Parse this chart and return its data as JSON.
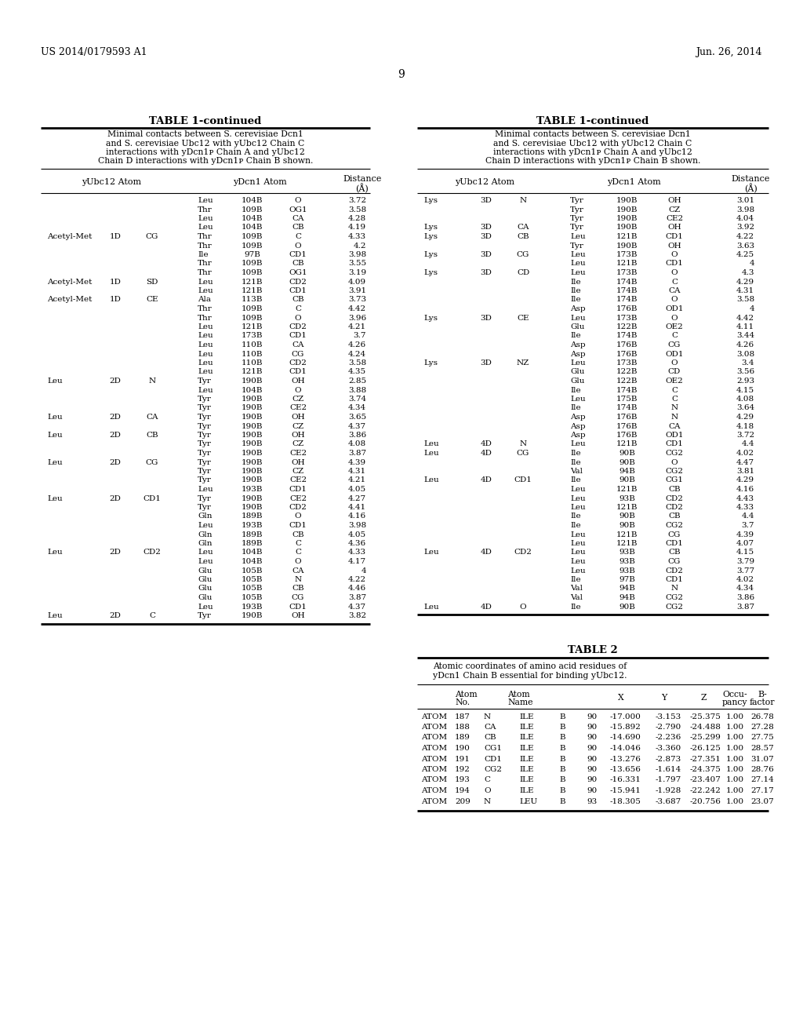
{
  "header_left": "US 2014/0179593 A1",
  "header_right": "Jun. 26, 2014",
  "page_number": "9",
  "table1_title": "TABLE 1-continued",
  "table1_caption_left": [
    "Minimal contacts between S. cerevisiae Dcn1",
    "and S. cerevisiae Ubc12 with yUbc12 Chain C",
    "interactions with yDcn1ᴘ Chain A and yUbc12",
    "Chain D interactions with yDcn1ᴘ Chain B shown."
  ],
  "table2_title": "TABLE 2",
  "table2_caption": [
    "Atomic coordinates of amino acid residues of",
    "yDcn1 Chain B essential for binding yUbc12."
  ],
  "left_table_data": [
    [
      "",
      "",
      "",
      "Leu",
      "104B",
      "O",
      "3.72"
    ],
    [
      "",
      "",
      "",
      "Thr",
      "109B",
      "OG1",
      "3.58"
    ],
    [
      "",
      "",
      "",
      "Leu",
      "104B",
      "CA",
      "4.28"
    ],
    [
      "",
      "",
      "",
      "Leu",
      "104B",
      "CB",
      "4.19"
    ],
    [
      "Acetyl-Met",
      "1D",
      "CG",
      "Thr",
      "109B",
      "C",
      "4.33"
    ],
    [
      "",
      "",
      "",
      "Thr",
      "109B",
      "O",
      "4.2"
    ],
    [
      "",
      "",
      "",
      "Ile",
      "97B",
      "CD1",
      "3.98"
    ],
    [
      "",
      "",
      "",
      "Thr",
      "109B",
      "CB",
      "3.55"
    ],
    [
      "",
      "",
      "",
      "Thr",
      "109B",
      "OG1",
      "3.19"
    ],
    [
      "Acetyl-Met",
      "1D",
      "SD",
      "Leu",
      "121B",
      "CD2",
      "4.09"
    ],
    [
      "",
      "",
      "",
      "Leu",
      "121B",
      "CD1",
      "3.91"
    ],
    [
      "Acetyl-Met",
      "1D",
      "CE",
      "Ala",
      "113B",
      "CB",
      "3.73"
    ],
    [
      "",
      "",
      "",
      "Thr",
      "109B",
      "C",
      "4.42"
    ],
    [
      "",
      "",
      "",
      "Thr",
      "109B",
      "O",
      "3.96"
    ],
    [
      "",
      "",
      "",
      "Leu",
      "121B",
      "CD2",
      "4.21"
    ],
    [
      "",
      "",
      "",
      "Leu",
      "173B",
      "CD1",
      "3.7"
    ],
    [
      "",
      "",
      "",
      "Leu",
      "110B",
      "CA",
      "4.26"
    ],
    [
      "",
      "",
      "",
      "Leu",
      "110B",
      "CG",
      "4.24"
    ],
    [
      "",
      "",
      "",
      "Leu",
      "110B",
      "CD2",
      "3.58"
    ],
    [
      "",
      "",
      "",
      "Leu",
      "121B",
      "CD1",
      "4.35"
    ],
    [
      "Leu",
      "2D",
      "N",
      "Tyr",
      "190B",
      "OH",
      "2.85"
    ],
    [
      "",
      "",
      "",
      "Leu",
      "104B",
      "O",
      "3.88"
    ],
    [
      "",
      "",
      "",
      "Tyr",
      "190B",
      "CZ",
      "3.74"
    ],
    [
      "",
      "",
      "",
      "Tyr",
      "190B",
      "CE2",
      "4.34"
    ],
    [
      "Leu",
      "2D",
      "CA",
      "Tyr",
      "190B",
      "OH",
      "3.65"
    ],
    [
      "",
      "",
      "",
      "Tyr",
      "190B",
      "CZ",
      "4.37"
    ],
    [
      "Leu",
      "2D",
      "CB",
      "Tyr",
      "190B",
      "OH",
      "3.86"
    ],
    [
      "",
      "",
      "",
      "Tyr",
      "190B",
      "CZ",
      "4.08"
    ],
    [
      "",
      "",
      "",
      "Tyr",
      "190B",
      "CE2",
      "3.87"
    ],
    [
      "Leu",
      "2D",
      "CG",
      "Tyr",
      "190B",
      "OH",
      "4.39"
    ],
    [
      "",
      "",
      "",
      "Tyr",
      "190B",
      "CZ",
      "4.31"
    ],
    [
      "",
      "",
      "",
      "Tyr",
      "190B",
      "CE2",
      "4.21"
    ],
    [
      "",
      "",
      "",
      "Leu",
      "193B",
      "CD1",
      "4.05"
    ],
    [
      "Leu",
      "2D",
      "CD1",
      "Tyr",
      "190B",
      "CE2",
      "4.27"
    ],
    [
      "",
      "",
      "",
      "Tyr",
      "190B",
      "CD2",
      "4.41"
    ],
    [
      "",
      "",
      "",
      "Gln",
      "189B",
      "O",
      "4.16"
    ],
    [
      "",
      "",
      "",
      "Leu",
      "193B",
      "CD1",
      "3.98"
    ],
    [
      "",
      "",
      "",
      "Gln",
      "189B",
      "CB",
      "4.05"
    ],
    [
      "",
      "",
      "",
      "Gln",
      "189B",
      "C",
      "4.36"
    ],
    [
      "Leu",
      "2D",
      "CD2",
      "Leu",
      "104B",
      "C",
      "4.33"
    ],
    [
      "",
      "",
      "",
      "Leu",
      "104B",
      "O",
      "4.17"
    ],
    [
      "",
      "",
      "",
      "Glu",
      "105B",
      "CA",
      "4"
    ],
    [
      "",
      "",
      "",
      "Glu",
      "105B",
      "N",
      "4.22"
    ],
    [
      "",
      "",
      "",
      "Glu",
      "105B",
      "CB",
      "4.46"
    ],
    [
      "",
      "",
      "",
      "Glu",
      "105B",
      "CG",
      "3.87"
    ],
    [
      "",
      "",
      "",
      "Leu",
      "193B",
      "CD1",
      "4.37"
    ],
    [
      "Leu",
      "2D",
      "C",
      "Tyr",
      "190B",
      "OH",
      "3.82"
    ]
  ],
  "right_table_data": [
    [
      "Lys",
      "3D",
      "N",
      "Tyr",
      "190B",
      "OH",
      "3.01"
    ],
    [
      "",
      "",
      "",
      "Tyr",
      "190B",
      "CZ",
      "3.98"
    ],
    [
      "",
      "",
      "",
      "Tyr",
      "190B",
      "CE2",
      "4.04"
    ],
    [
      "Lys",
      "3D",
      "CA",
      "Tyr",
      "190B",
      "OH",
      "3.92"
    ],
    [
      "Lys",
      "3D",
      "CB",
      "Leu",
      "121B",
      "CD1",
      "4.22"
    ],
    [
      "",
      "",
      "",
      "Tyr",
      "190B",
      "OH",
      "3.63"
    ],
    [
      "Lys",
      "3D",
      "CG",
      "Leu",
      "173B",
      "O",
      "4.25"
    ],
    [
      "",
      "",
      "",
      "Leu",
      "121B",
      "CD1",
      "4"
    ],
    [
      "Lys",
      "3D",
      "CD",
      "Leu",
      "173B",
      "O",
      "4.3"
    ],
    [
      "",
      "",
      "",
      "Ile",
      "174B",
      "C",
      "4.29"
    ],
    [
      "",
      "",
      "",
      "Ile",
      "174B",
      "CA",
      "4.31"
    ],
    [
      "",
      "",
      "",
      "Ile",
      "174B",
      "O",
      "3.58"
    ],
    [
      "",
      "",
      "",
      "Asp",
      "176B",
      "OD1",
      "4"
    ],
    [
      "Lys",
      "3D",
      "CE",
      "Leu",
      "173B",
      "O",
      "4.42"
    ],
    [
      "",
      "",
      "",
      "Glu",
      "122B",
      "OE2",
      "4.11"
    ],
    [
      "",
      "",
      "",
      "Ile",
      "174B",
      "C",
      "3.44"
    ],
    [
      "",
      "",
      "",
      "Asp",
      "176B",
      "CG",
      "4.26"
    ],
    [
      "",
      "",
      "",
      "Asp",
      "176B",
      "OD1",
      "3.08"
    ],
    [
      "Lys",
      "3D",
      "NZ",
      "Leu",
      "173B",
      "O",
      "3.4"
    ],
    [
      "",
      "",
      "",
      "Glu",
      "122B",
      "CD",
      "3.56"
    ],
    [
      "",
      "",
      "",
      "Glu",
      "122B",
      "OE2",
      "2.93"
    ],
    [
      "",
      "",
      "",
      "Ile",
      "174B",
      "C",
      "4.15"
    ],
    [
      "",
      "",
      "",
      "Leu",
      "175B",
      "C",
      "4.08"
    ],
    [
      "",
      "",
      "",
      "Ile",
      "174B",
      "N",
      "3.64"
    ],
    [
      "",
      "",
      "",
      "Asp",
      "176B",
      "N",
      "4.29"
    ],
    [
      "",
      "",
      "",
      "Asp",
      "176B",
      "CA",
      "4.18"
    ],
    [
      "",
      "",
      "",
      "Asp",
      "176B",
      "OD1",
      "3.72"
    ],
    [
      "Leu",
      "4D",
      "N",
      "Leu",
      "121B",
      "CD1",
      "4.4"
    ],
    [
      "Leu",
      "4D",
      "CG",
      "Ile",
      "90B",
      "CG2",
      "4.02"
    ],
    [
      "",
      "",
      "",
      "Ile",
      "90B",
      "O",
      "4.47"
    ],
    [
      "",
      "",
      "",
      "Val",
      "94B",
      "CG2",
      "3.81"
    ],
    [
      "Leu",
      "4D",
      "CD1",
      "Ile",
      "90B",
      "CG1",
      "4.29"
    ],
    [
      "",
      "",
      "",
      "Leu",
      "121B",
      "CB",
      "4.16"
    ],
    [
      "",
      "",
      "",
      "Leu",
      "93B",
      "CD2",
      "4.43"
    ],
    [
      "",
      "",
      "",
      "Leu",
      "121B",
      "CD2",
      "4.33"
    ],
    [
      "",
      "",
      "",
      "Ile",
      "90B",
      "CB",
      "4.4"
    ],
    [
      "",
      "",
      "",
      "Ile",
      "90B",
      "CG2",
      "3.7"
    ],
    [
      "",
      "",
      "",
      "Leu",
      "121B",
      "CG",
      "4.39"
    ],
    [
      "",
      "",
      "",
      "Leu",
      "121B",
      "CD1",
      "4.07"
    ],
    [
      "Leu",
      "4D",
      "CD2",
      "Leu",
      "93B",
      "CB",
      "4.15"
    ],
    [
      "",
      "",
      "",
      "Leu",
      "93B",
      "CG",
      "3.79"
    ],
    [
      "",
      "",
      "",
      "Leu",
      "93B",
      "CD2",
      "3.77"
    ],
    [
      "",
      "",
      "",
      "Ile",
      "97B",
      "CD1",
      "4.02"
    ],
    [
      "",
      "",
      "",
      "Val",
      "94B",
      "N",
      "4.34"
    ],
    [
      "",
      "",
      "",
      "Val",
      "94B",
      "CG2",
      "3.86"
    ],
    [
      "Leu",
      "4D",
      "O",
      "Ile",
      "90B",
      "CG2",
      "3.87"
    ]
  ],
  "table2_data": [
    [
      "ATOM",
      "187",
      "N",
      "ILE",
      "B",
      "90",
      "-17.000",
      "-3.153",
      "-25.375",
      "1.00",
      "26.78"
    ],
    [
      "ATOM",
      "188",
      "CA",
      "ILE",
      "B",
      "90",
      "-15.892",
      "-2.790",
      "-24.488",
      "1.00",
      "27.28"
    ],
    [
      "ATOM",
      "189",
      "CB",
      "ILE",
      "B",
      "90",
      "-14.690",
      "-2.236",
      "-25.299",
      "1.00",
      "27.75"
    ],
    [
      "ATOM",
      "190",
      "CG1",
      "ILE",
      "B",
      "90",
      "-14.046",
      "-3.360",
      "-26.125",
      "1.00",
      "28.57"
    ],
    [
      "ATOM",
      "191",
      "CD1",
      "ILE",
      "B",
      "90",
      "-13.276",
      "-2.873",
      "-27.351",
      "1.00",
      "31.07"
    ],
    [
      "ATOM",
      "192",
      "CG2",
      "ILE",
      "B",
      "90",
      "-13.656",
      "-1.614",
      "-24.375",
      "1.00",
      "28.76"
    ],
    [
      "ATOM",
      "193",
      "C",
      "ILE",
      "B",
      "90",
      "-16.331",
      "-1.797",
      "-23.407",
      "1.00",
      "27.14"
    ],
    [
      "ATOM",
      "194",
      "O",
      "ILE",
      "B",
      "90",
      "-15.941",
      "-1.928",
      "-22.242",
      "1.00",
      "27.17"
    ],
    [
      "ATOM",
      "209",
      "N",
      "LEU",
      "B",
      "93",
      "-18.305",
      "-3.687",
      "-20.756",
      "1.00",
      "23.07"
    ]
  ],
  "bg_color": "#ffffff",
  "text_color": "#000000"
}
